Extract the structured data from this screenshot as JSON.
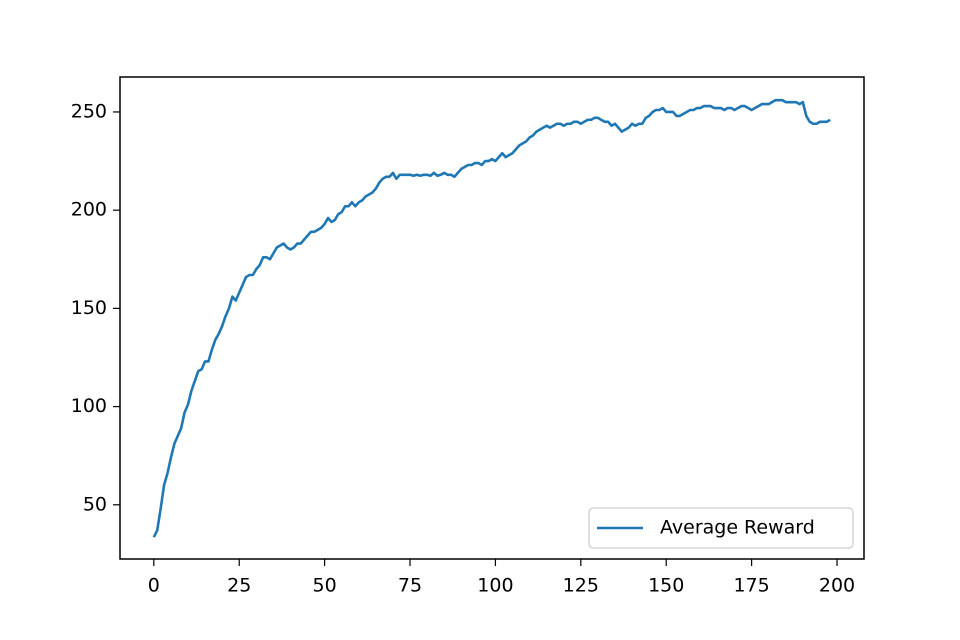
{
  "chart_data": {
    "type": "line",
    "x": [
      0,
      1,
      2,
      3,
      4,
      5,
      6,
      7,
      8,
      9,
      10,
      11,
      12,
      13,
      14,
      15,
      16,
      17,
      18,
      19,
      20,
      21,
      22,
      23,
      24,
      25,
      26,
      27,
      28,
      29,
      30,
      31,
      32,
      33,
      34,
      35,
      36,
      37,
      38,
      39,
      40,
      41,
      42,
      43,
      44,
      45,
      46,
      47,
      48,
      49,
      50,
      51,
      52,
      53,
      54,
      55,
      56,
      57,
      58,
      59,
      60,
      61,
      62,
      63,
      64,
      65,
      66,
      67,
      68,
      69,
      70,
      71,
      72,
      73,
      74,
      75,
      76,
      77,
      78,
      79,
      80,
      81,
      82,
      83,
      84,
      85,
      86,
      87,
      88,
      89,
      90,
      91,
      92,
      93,
      94,
      95,
      96,
      97,
      98,
      99,
      100,
      101,
      102,
      103,
      104,
      105,
      106,
      107,
      108,
      109,
      110,
      111,
      112,
      113,
      114,
      115,
      116,
      117,
      118,
      119,
      120,
      121,
      122,
      123,
      124,
      125,
      126,
      127,
      128,
      129,
      130,
      131,
      132,
      133,
      134,
      135,
      136,
      137,
      138,
      139,
      140,
      141,
      142,
      143,
      144,
      145,
      146,
      147,
      148,
      149,
      150,
      151,
      152,
      153,
      154,
      155,
      156,
      157,
      158,
      159,
      160,
      161,
      162,
      163,
      164,
      165,
      166,
      167,
      168,
      169,
      170,
      171,
      172,
      173,
      174,
      175,
      176,
      177,
      178,
      179,
      180,
      181,
      182,
      183,
      184,
      185,
      186,
      187,
      188,
      189,
      190,
      191,
      192,
      193,
      194,
      195,
      196,
      197,
      198
    ],
    "series": [
      {
        "name": "Average Reward",
        "color": "#1f77b4",
        "values": [
          33.5,
          37,
          48,
          60,
          66,
          74,
          81,
          85,
          89,
          97,
          101,
          108,
          113,
          118,
          119,
          123,
          123,
          129,
          134,
          137,
          141,
          146,
          150,
          156,
          154,
          158,
          162,
          166,
          167,
          167,
          170,
          172,
          176,
          176,
          175,
          178,
          181,
          182,
          183,
          181,
          180,
          181,
          183,
          183,
          185,
          187,
          189,
          189,
          190,
          191,
          193,
          196,
          194,
          195,
          198,
          199,
          202,
          202,
          204,
          202,
          204,
          205,
          207,
          208,
          209,
          211,
          214,
          216,
          217,
          217,
          219,
          216,
          218,
          218,
          218,
          218,
          217.5,
          218,
          217.5,
          218,
          218,
          217.5,
          219,
          217.5,
          218,
          219,
          218,
          218,
          217,
          219,
          221,
          222,
          223,
          223,
          224,
          224,
          223,
          225,
          225,
          226,
          225,
          227,
          229,
          227,
          228,
          229,
          231,
          233,
          234,
          235,
          237,
          238,
          240,
          241,
          242,
          243,
          242,
          243,
          244,
          244,
          243,
          244,
          244,
          245,
          245,
          244,
          245,
          246,
          246,
          247,
          247,
          246,
          245,
          245,
          243,
          244,
          242,
          240,
          241,
          242,
          244,
          243,
          244,
          244,
          247,
          248,
          250,
          251,
          251,
          252,
          250,
          250,
          250,
          248,
          248,
          249,
          250,
          251,
          251,
          252,
          252,
          253,
          253,
          253,
          252,
          252,
          252,
          251,
          252,
          252,
          251,
          252,
          253,
          253,
          252,
          251,
          252,
          253,
          254,
          254,
          254,
          255,
          256,
          256,
          256,
          255,
          255,
          255,
          255,
          254,
          255,
          248,
          245,
          244,
          244,
          245,
          245,
          245,
          246
        ]
      }
    ],
    "xlim": [
      -9.9,
      207.9
    ],
    "ylim": [
      22.4,
      267.8
    ],
    "xticks": [
      0,
      25,
      50,
      75,
      100,
      125,
      150,
      175,
      200
    ],
    "yticks": [
      50,
      100,
      150,
      200,
      250
    ],
    "legend": "lower right"
  }
}
